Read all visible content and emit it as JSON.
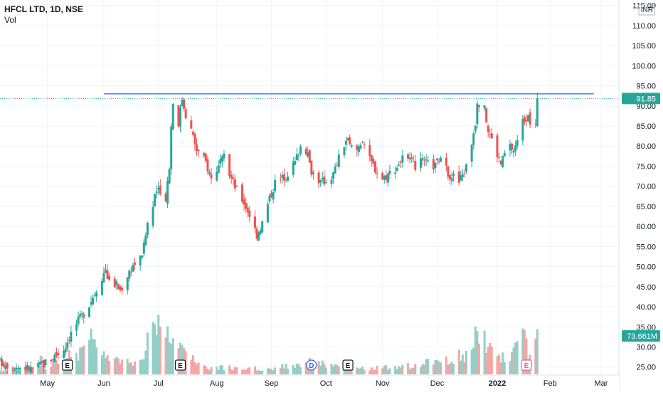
{
  "header": {
    "symbol_line": "HFCL LTD, 1D, NSE",
    "volume_label": "Vol"
  },
  "colors": {
    "up": "#26a69a",
    "down": "#ef5350",
    "vol_up": "#93cfc7",
    "vol_down": "#f4a6a4",
    "resistance_line": "#2962ff",
    "price_line": "#26a69a",
    "axis_text": "#131722",
    "grid": "#f0f3fa",
    "earnings_badge": "#131722",
    "dividend_badge": "#2962ff",
    "future_earnings_badge": "#f06292"
  },
  "chart_data": {
    "type": "candlestick",
    "symbol": "HFCL LTD",
    "interval": "1D",
    "exchange": "NSE",
    "currency": "INR",
    "y_axis": {
      "min": 23.0,
      "max": 116.0,
      "ticks": [
        "25.00",
        "30.00",
        "35.00",
        "40.00",
        "45.00",
        "50.00",
        "55.00",
        "60.00",
        "65.00",
        "70.00",
        "75.00",
        "80.00",
        "85.00",
        "90.00",
        "95.00",
        "100.00",
        "105.00",
        "110.00",
        "115.00"
      ],
      "unit_label": "INR"
    },
    "x_axis": {
      "start_date": "2021-04-05",
      "end_date": "2022-03-10",
      "labels": [
        {
          "text": "May",
          "date": "2021-05-01",
          "bold": false
        },
        {
          "text": "Jun",
          "date": "2021-06-01",
          "bold": false
        },
        {
          "text": "Jul",
          "date": "2021-07-01",
          "bold": false
        },
        {
          "text": "Aug",
          "date": "2021-08-02",
          "bold": false
        },
        {
          "text": "Sep",
          "date": "2021-09-01",
          "bold": false
        },
        {
          "text": "Oct",
          "date": "2021-10-01",
          "bold": false
        },
        {
          "text": "Nov",
          "date": "2021-11-01",
          "bold": false
        },
        {
          "text": "Dec",
          "date": "2021-12-01",
          "bold": false
        },
        {
          "text": "2022",
          "date": "2022-01-03",
          "bold": true
        },
        {
          "text": "Feb",
          "date": "2022-02-01",
          "bold": false
        },
        {
          "text": "Mar",
          "date": "2022-03-01",
          "bold": false
        }
      ]
    },
    "last_price": {
      "value": 91.85,
      "label": "91.85"
    },
    "last_volume": {
      "label": "73.661M"
    },
    "horizontal_line": {
      "value": 93.0,
      "start_date": "2021-06-01",
      "end_date": "2022-02-25"
    },
    "event_markers": [
      {
        "text": "E",
        "type": "earnings",
        "date": "2021-05-12"
      },
      {
        "text": "E",
        "type": "earnings",
        "date": "2021-07-13"
      },
      {
        "text": "D",
        "type": "dividend",
        "date": "2021-09-23"
      },
      {
        "text": "E",
        "type": "earnings",
        "date": "2021-10-13"
      },
      {
        "text": "E",
        "type": "earnings_upcoming",
        "date": "2022-01-19"
      }
    ],
    "anchors": [
      [
        "2021-04-05",
        26.3
      ],
      [
        "2021-04-13",
        25.2
      ],
      [
        "2021-04-22",
        24.6
      ],
      [
        "2021-04-28",
        25.6
      ],
      [
        "2021-05-04",
        27.5
      ],
      [
        "2021-05-10",
        29.5
      ],
      [
        "2021-05-14",
        33.5
      ],
      [
        "2021-05-18",
        36.5
      ],
      [
        "2021-05-21",
        38.5
      ],
      [
        "2021-05-24",
        40.8
      ],
      [
        "2021-05-27",
        43.5
      ],
      [
        "2021-05-31",
        47.5
      ],
      [
        "2021-06-02",
        49.5
      ],
      [
        "2021-06-04",
        46.0
      ],
      [
        "2021-06-08",
        45.5
      ],
      [
        "2021-06-10",
        44.0
      ],
      [
        "2021-06-14",
        48.0
      ],
      [
        "2021-06-17",
        50.5
      ],
      [
        "2021-06-21",
        52.0
      ],
      [
        "2021-06-23",
        55.0
      ],
      [
        "2021-06-25",
        61.0
      ],
      [
        "2021-06-28",
        65.0
      ],
      [
        "2021-06-30",
        69.0
      ],
      [
        "2021-07-02",
        68.0
      ],
      [
        "2021-07-05",
        67.5
      ],
      [
        "2021-07-07",
        75.0
      ],
      [
        "2021-07-08",
        85.0
      ],
      [
        "2021-07-09",
        91.0
      ],
      [
        "2021-07-12",
        86.0
      ],
      [
        "2021-07-14",
        92.0
      ],
      [
        "2021-07-16",
        88.0
      ],
      [
        "2021-07-19",
        84.0
      ],
      [
        "2021-07-22",
        79.0
      ],
      [
        "2021-07-27",
        76.0
      ],
      [
        "2021-07-30",
        72.0
      ],
      [
        "2021-08-03",
        75.0
      ],
      [
        "2021-08-06",
        77.0
      ],
      [
        "2021-08-10",
        72.0
      ],
      [
        "2021-08-13",
        69.0
      ],
      [
        "2021-08-17",
        66.0
      ],
      [
        "2021-08-20",
        63.0
      ],
      [
        "2021-08-24",
        58.0
      ],
      [
        "2021-08-27",
        61.0
      ],
      [
        "2021-08-31",
        67.0
      ],
      [
        "2021-09-03",
        71.0
      ],
      [
        "2021-09-07",
        72.0
      ],
      [
        "2021-09-10",
        73.5
      ],
      [
        "2021-09-14",
        76.0
      ],
      [
        "2021-09-17",
        80.0
      ],
      [
        "2021-09-20",
        79.0
      ],
      [
        "2021-09-23",
        74.0
      ],
      [
        "2021-09-28",
        71.0
      ],
      [
        "2021-10-01",
        71.5
      ],
      [
        "2021-10-05",
        73.0
      ],
      [
        "2021-10-08",
        77.0
      ],
      [
        "2021-10-12",
        81.5
      ],
      [
        "2021-10-14",
        80.0
      ],
      [
        "2021-10-18",
        79.0
      ],
      [
        "2021-10-21",
        82.0
      ],
      [
        "2021-10-25",
        76.5
      ],
      [
        "2021-10-28",
        74.5
      ],
      [
        "2021-11-01",
        72.0
      ],
      [
        "2021-11-04",
        73.0
      ],
      [
        "2021-11-09",
        75.0
      ],
      [
        "2021-11-12",
        77.0
      ],
      [
        "2021-11-16",
        76.0
      ],
      [
        "2021-11-19",
        75.0
      ],
      [
        "2021-11-23",
        76.0
      ],
      [
        "2021-11-26",
        75.5
      ],
      [
        "2021-11-30",
        75.0
      ],
      [
        "2021-12-02",
        77.0
      ],
      [
        "2021-12-06",
        74.0
      ],
      [
        "2021-12-08",
        73.0
      ],
      [
        "2021-12-10",
        72.5
      ],
      [
        "2021-12-13",
        71.0
      ],
      [
        "2021-12-15",
        73.0
      ],
      [
        "2021-12-17",
        75.0
      ],
      [
        "2021-12-20",
        81.0
      ],
      [
        "2021-12-22",
        86.0
      ],
      [
        "2021-12-23",
        91.5
      ],
      [
        "2021-12-27",
        89.0
      ],
      [
        "2021-12-29",
        84.0
      ],
      [
        "2022-01-03",
        78.0
      ],
      [
        "2022-01-05",
        75.5
      ],
      [
        "2022-01-07",
        78.0
      ],
      [
        "2022-01-10",
        80.0
      ],
      [
        "2022-01-12",
        79.0
      ],
      [
        "2022-01-14",
        81.0
      ],
      [
        "2022-01-17",
        87.5
      ],
      [
        "2022-01-19",
        87.0
      ],
      [
        "2022-01-21",
        86.0
      ],
      [
        "2022-01-24",
        85.0
      ],
      [
        "2022-01-25",
        91.85
      ]
    ],
    "volume_anchors": [
      [
        "2021-04-05",
        0.5
      ],
      [
        "2021-05-01",
        1.2
      ],
      [
        "2021-05-12",
        2.6
      ],
      [
        "2021-05-20",
        3.4
      ],
      [
        "2021-05-24",
        5.0
      ],
      [
        "2021-05-28",
        3.8
      ],
      [
        "2021-06-03",
        2.4
      ],
      [
        "2021-06-15",
        1.6
      ],
      [
        "2021-06-22",
        2.6
      ],
      [
        "2021-06-25",
        5.5
      ],
      [
        "2021-06-29",
        9.0
      ],
      [
        "2021-07-05",
        4.0
      ],
      [
        "2021-07-08",
        7.0
      ],
      [
        "2021-07-09",
        6.3
      ],
      [
        "2021-07-15",
        3.0
      ],
      [
        "2021-07-25",
        1.0
      ],
      [
        "2021-09-01",
        0.8
      ],
      [
        "2021-09-23",
        1.8
      ],
      [
        "2021-10-14",
        0.8
      ],
      [
        "2021-11-10",
        1.0
      ],
      [
        "2021-12-01",
        1.8
      ],
      [
        "2021-12-20",
        3.0
      ],
      [
        "2021-12-23",
        6.0
      ],
      [
        "2021-12-29",
        4.0
      ],
      [
        "2022-01-10",
        2.0
      ],
      [
        "2022-01-18",
        5.5
      ],
      [
        "2022-01-21",
        2.4
      ],
      [
        "2022-01-25",
        6.0
      ]
    ],
    "volume_max": 10.0
  }
}
